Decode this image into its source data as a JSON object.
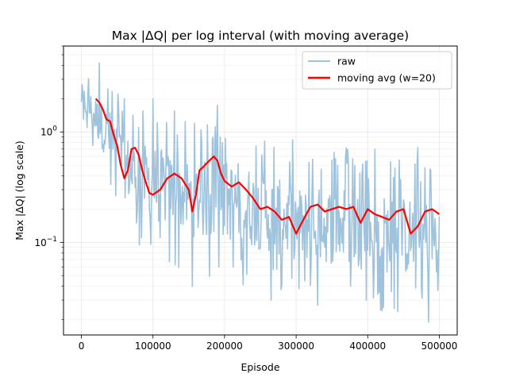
{
  "chart_data": {
    "type": "line",
    "title": "Max |ΔQ| per log interval (with moving average)",
    "xlabel": "Episode",
    "ylabel": "Max |ΔQ| (log scale)",
    "x_range": [
      -25000,
      525000
    ],
    "y_range": [
      0.0145,
      6.0
    ],
    "y_scale": "log",
    "grid": "on (major and minor)",
    "legend_position": "top-right",
    "x_ticks": [
      0,
      100000,
      200000,
      300000,
      400000,
      500000
    ],
    "x_tick_labels": [
      "0",
      "100000",
      "200000",
      "300000",
      "400000",
      "500000"
    ],
    "y_major_ticks": [
      0.1,
      1.0
    ],
    "y_tick_labels": [
      {
        "base": "10",
        "exp": "−1"
      },
      {
        "base": "10",
        "exp": "0"
      }
    ],
    "raw_envelope": {
      "x": [
        0,
        20000,
        40000,
        60000,
        80000,
        100000,
        130000,
        160000,
        190000,
        220000,
        250000,
        280000,
        310000,
        340000,
        370000,
        400000,
        430000,
        460000,
        500000
      ],
      "upper": [
        3.6,
        3.2,
        2.8,
        1.9,
        1.6,
        1.7,
        1.3,
        1.2,
        1.3,
        1.3,
        0.95,
        0.8,
        0.65,
        0.7,
        0.75,
        0.6,
        0.6,
        0.58,
        0.55
      ],
      "lower": [
        1.2,
        0.6,
        0.28,
        0.13,
        0.09,
        0.07,
        0.06,
        0.05,
        0.045,
        0.042,
        0.038,
        0.034,
        0.031,
        0.029,
        0.027,
        0.025,
        0.023,
        0.022,
        0.021
      ],
      "peaks": [
        {
          "x": 25000,
          "y": 4.2
        },
        {
          "x": 60000,
          "y": 2.0
        },
        {
          "x": 100000,
          "y": 2.0
        },
        {
          "x": 130000,
          "y": 1.55
        },
        {
          "x": 190000,
          "y": 1.75
        },
        {
          "x": 295000,
          "y": 0.85
        },
        {
          "x": 410000,
          "y": 0.7
        },
        {
          "x": 470000,
          "y": 0.72
        }
      ],
      "troughs": [
        {
          "x": 155000,
          "y": 0.04
        },
        {
          "x": 265000,
          "y": 0.03
        },
        {
          "x": 330000,
          "y": 0.027
        },
        {
          "x": 420000,
          "y": 0.024
        },
        {
          "x": 485000,
          "y": 0.019
        }
      ]
    },
    "series": [
      {
        "name": "raw",
        "color": "#9fc3dd"
      },
      {
        "name": "moving avg (w=20)",
        "color": "#ff0000",
        "x": [
          20000,
          25000,
          30000,
          35000,
          40000,
          45000,
          50000,
          55000,
          60000,
          65000,
          70000,
          75000,
          80000,
          85000,
          90000,
          95000,
          100000,
          110000,
          120000,
          130000,
          140000,
          150000,
          155000,
          160000,
          165000,
          170000,
          175000,
          180000,
          185000,
          190000,
          195000,
          200000,
          210000,
          220000,
          230000,
          240000,
          250000,
          260000,
          270000,
          280000,
          290000,
          300000,
          310000,
          320000,
          330000,
          340000,
          350000,
          360000,
          370000,
          380000,
          390000,
          400000,
          410000,
          420000,
          430000,
          440000,
          450000,
          460000,
          470000,
          480000,
          490000,
          500000
        ],
        "values": [
          2.0,
          1.85,
          1.6,
          1.3,
          1.25,
          0.95,
          0.75,
          0.5,
          0.38,
          0.45,
          0.7,
          0.72,
          0.62,
          0.45,
          0.35,
          0.28,
          0.27,
          0.3,
          0.38,
          0.42,
          0.38,
          0.3,
          0.19,
          0.27,
          0.45,
          0.48,
          0.52,
          0.56,
          0.6,
          0.55,
          0.42,
          0.36,
          0.32,
          0.35,
          0.3,
          0.25,
          0.2,
          0.21,
          0.19,
          0.16,
          0.17,
          0.12,
          0.16,
          0.21,
          0.22,
          0.19,
          0.2,
          0.21,
          0.2,
          0.21,
          0.15,
          0.2,
          0.18,
          0.17,
          0.16,
          0.19,
          0.2,
          0.12,
          0.14,
          0.19,
          0.2,
          0.18
        ]
      }
    ]
  }
}
